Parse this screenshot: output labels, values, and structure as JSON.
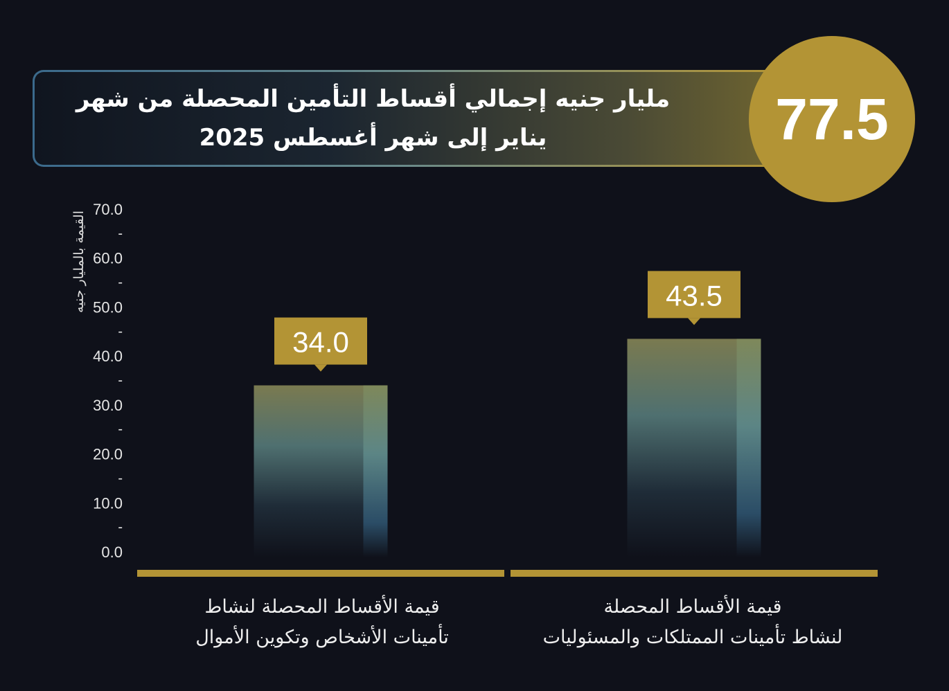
{
  "header": {
    "title_lines": [
      "مليار جنيه إجمالي أقساط التأمين المحصلة من شهر",
      "يناير إلى شهر أغسطس 2025"
    ],
    "total_value": "77.5"
  },
  "colors": {
    "background": "#0f111a",
    "gold": "#b39435",
    "bar_top": "#7a7a50",
    "bar_mid": "#4f7a80",
    "bar_bottom": "#0f111a"
  },
  "chart_data": {
    "type": "bar",
    "ylabel": "القيمة بالمليار جنيه",
    "ylim": [
      0,
      70
    ],
    "yticks": [
      "0.0",
      "10.0",
      "20.0",
      "30.0",
      "40.0",
      "50.0",
      "60.0",
      "70.0"
    ],
    "grid": false,
    "categories": [
      [
        "قيمة الأقساط المحصلة لنشاط",
        "تأمينات الأشخاص وتكوين الأموال"
      ],
      [
        "قيمة الأقساط المحصلة",
        "لنشاط تأمينات الممتلكات والمسئوليات"
      ]
    ],
    "values": [
      34.0,
      43.5
    ],
    "data_labels": [
      "34.0",
      "43.5"
    ]
  }
}
